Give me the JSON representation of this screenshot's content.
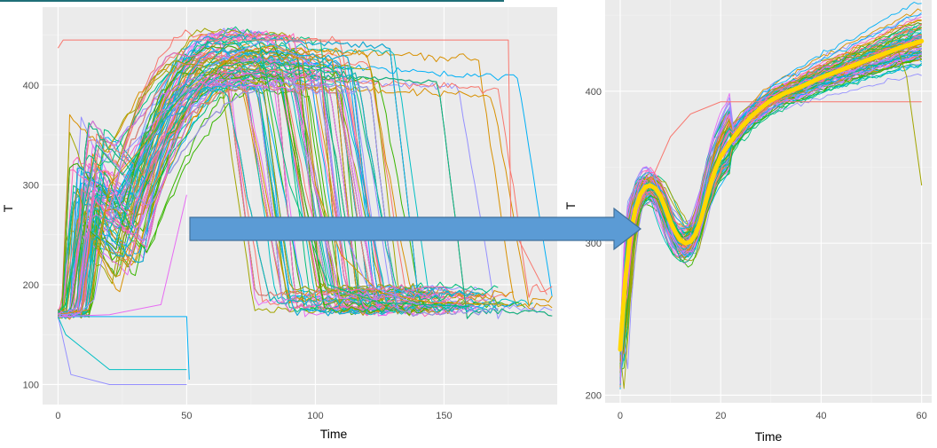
{
  "chart_data": [
    {
      "type": "line",
      "title": "",
      "xlabel": "Time",
      "ylabel": "T",
      "xlim": [
        -6,
        194
      ],
      "ylim": [
        80,
        478
      ],
      "x_ticks": [
        0,
        50,
        100,
        150
      ],
      "y_ticks": [
        100,
        200,
        300,
        400
      ],
      "x_tick_labels": [
        "0",
        "50",
        "100",
        "150"
      ],
      "y_tick_labels": [
        "100",
        "200",
        "300",
        "400"
      ],
      "grid": true,
      "legend": "none",
      "series_count": 160,
      "palette": [
        "#F8766D",
        "#D89000",
        "#A3A500",
        "#39B600",
        "#00BF7D",
        "#00BFC4",
        "#00B0F6",
        "#9590FF",
        "#E76BF3",
        "#FF62BC"
      ],
      "representative_series": [
        {
          "x": [
            0,
            5,
            12,
            20,
            30,
            50,
            70,
            85,
            95,
            100,
            110,
            125,
            145,
            175
          ],
          "y": [
            170,
            172,
            175,
            300,
            330,
            395,
            432,
            440,
            425,
            300,
            230,
            192,
            182,
            180
          ]
        },
        {
          "x": [
            0,
            3,
            8,
            15,
            25,
            45,
            65,
            78,
            90,
            105,
            125,
            160
          ],
          "y": [
            172,
            180,
            250,
            340,
            310,
            380,
            440,
            445,
            300,
            200,
            182,
            178
          ]
        },
        {
          "x": [
            0,
            8,
            14,
            25,
            40,
            60,
            80,
            100,
            110,
            120,
            140
          ],
          "y": [
            170,
            171,
            185,
            330,
            370,
            420,
            445,
            420,
            260,
            200,
            180
          ]
        }
      ],
      "outlier_series": [
        {
          "x": [
            0,
            10,
            30,
            50,
            51
          ],
          "y": [
            168,
            168,
            168,
            168,
            105
          ]
        },
        {
          "x": [
            0,
            5,
            20,
            50
          ],
          "y": [
            168,
            110,
            100,
            100
          ]
        },
        {
          "x": [
            0,
            3,
            20,
            50
          ],
          "y": [
            168,
            150,
            115,
            115
          ]
        },
        {
          "x": [
            0,
            2,
            8,
            50,
            100,
            140,
            175,
            176,
            190
          ],
          "y": [
            437,
            445,
            445,
            445,
            445,
            445,
            445,
            260,
            190
          ]
        },
        {
          "x": [
            0,
            20,
            40,
            50
          ],
          "y": [
            168,
            170,
            180,
            290
          ]
        }
      ]
    },
    {
      "type": "line",
      "title": "",
      "xlabel": "Time",
      "ylabel": "T",
      "xlim": [
        -3,
        62
      ],
      "ylim": [
        195,
        460
      ],
      "x_ticks": [
        0,
        20,
        40,
        60
      ],
      "y_ticks": [
        200,
        300,
        400
      ],
      "x_tick_labels": [
        "0",
        "20",
        "40",
        "60"
      ],
      "y_tick_labels": [
        "200",
        "300",
        "400"
      ],
      "grid": true,
      "legend": "none",
      "series_count": 100,
      "palette": [
        "#F8766D",
        "#D89000",
        "#A3A500",
        "#39B600",
        "#00BF7D",
        "#00BFC4",
        "#00B0F6",
        "#9590FF",
        "#E76BF3",
        "#FF62BC"
      ],
      "mean_curve": {
        "color": "#FFD700",
        "x": [
          0,
          1,
          2,
          3,
          4,
          5,
          6,
          7,
          8,
          9,
          10,
          11,
          12,
          13,
          14,
          15,
          16,
          17,
          18,
          19,
          20,
          22,
          24,
          26,
          28,
          30,
          33,
          36,
          40,
          44,
          48,
          52,
          56,
          60
        ],
        "y": [
          230,
          275,
          305,
          322,
          332,
          337,
          338,
          336,
          331,
          323,
          314,
          307,
          302,
          300,
          301,
          306,
          315,
          327,
          339,
          349,
          357,
          367,
          376,
          383,
          389,
          394,
          399,
          403,
          409,
          414,
          419,
          424,
          429,
          433
        ]
      }
    }
  ]
}
